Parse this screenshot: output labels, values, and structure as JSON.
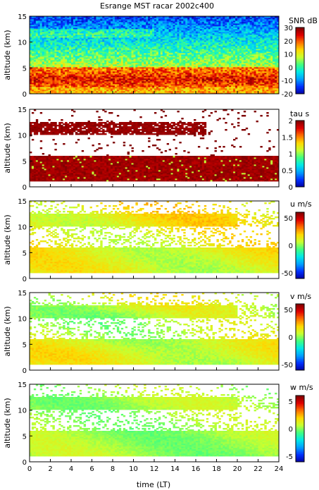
{
  "chart_data": [
    {
      "type": "heatmap",
      "title": "Esrange MST racar 2002c400",
      "ylabel": "altitude (km)",
      "xlim": [
        0,
        24
      ],
      "ylim": [
        0,
        15
      ],
      "yticks": [
        0,
        5,
        10,
        15
      ],
      "colorbar": {
        "label": "SNR dB",
        "min": -20,
        "max": 30,
        "ticks": [
          -20,
          -10,
          0,
          10,
          20,
          30
        ]
      },
      "colormap": [
        "#0000a0",
        "#0030ff",
        "#00a0ff",
        "#00e8e8",
        "#40ff80",
        "#c8ff30",
        "#ffd800",
        "#ff7000",
        "#e00000",
        "#800000"
      ]
    },
    {
      "type": "heatmap",
      "ylabel": "altitude (km)",
      "xlim": [
        0,
        24
      ],
      "ylim": [
        0,
        15
      ],
      "yticks": [
        0,
        5,
        10,
        15
      ],
      "colorbar": {
        "label": "tau s",
        "min": 0,
        "max": 2,
        "ticks": [
          0,
          0.5,
          1,
          1.5,
          2
        ]
      },
      "colormap": [
        "#0000a0",
        "#0030ff",
        "#00a0ff",
        "#00e8e8",
        "#40ff80",
        "#c8ff30",
        "#ffd800",
        "#ff7000",
        "#e00000",
        "#800000"
      ]
    },
    {
      "type": "heatmap",
      "ylabel": "altitude (km)",
      "xlim": [
        0,
        24
      ],
      "ylim": [
        0,
        15
      ],
      "yticks": [
        0,
        5,
        10,
        15
      ],
      "colorbar": {
        "label": "u m/s",
        "min": -60,
        "max": 60,
        "ticks": [
          -50,
          0,
          50
        ]
      },
      "colormap": [
        "#0000a0",
        "#0030ff",
        "#00a0ff",
        "#00e8e8",
        "#40ff80",
        "#c8ff30",
        "#ffd800",
        "#ff7000",
        "#e00000",
        "#800000"
      ]
    },
    {
      "type": "heatmap",
      "ylabel": "altitude (km)",
      "xlim": [
        0,
        24
      ],
      "ylim": [
        0,
        15
      ],
      "yticks": [
        0,
        5,
        10,
        15
      ],
      "colorbar": {
        "label": "v m/s",
        "min": -60,
        "max": 60,
        "ticks": [
          -50,
          0,
          50
        ]
      },
      "colormap": [
        "#0000a0",
        "#0030ff",
        "#00a0ff",
        "#00e8e8",
        "#40ff80",
        "#c8ff30",
        "#ffd800",
        "#ff7000",
        "#e00000",
        "#800000"
      ]
    },
    {
      "type": "heatmap",
      "ylabel": "altitude (km)",
      "xlabel": "time (LT)",
      "xlim": [
        0,
        24
      ],
      "ylim": [
        0,
        15
      ],
      "yticks": [
        0,
        5,
        10,
        15
      ],
      "xticks": [
        0,
        2,
        4,
        6,
        8,
        10,
        12,
        14,
        16,
        18,
        20,
        22,
        24
      ],
      "colorbar": {
        "label": "w m/s",
        "min": -6,
        "max": 6,
        "ticks": [
          -5,
          0,
          5
        ]
      },
      "colormap": [
        "#0000a0",
        "#0030ff",
        "#00a0ff",
        "#00e8e8",
        "#40ff80",
        "#c8ff30",
        "#ffd800",
        "#ff7000",
        "#e00000",
        "#800000"
      ]
    }
  ]
}
